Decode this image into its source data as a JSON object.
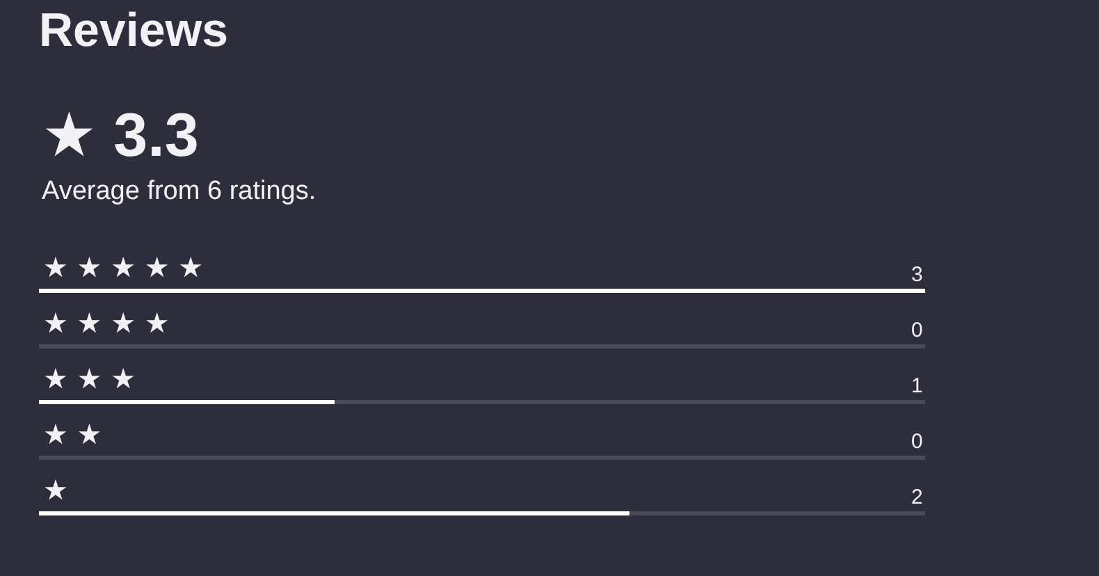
{
  "chart_data": {
    "type": "bar",
    "orientation": "horizontal",
    "title": "Reviews",
    "subtitle": "★ 3.3",
    "annotations": [
      "Average from 6 ratings."
    ],
    "categories": [
      "★ ★ ★ ★ ★",
      "★ ★ ★ ★",
      "★ ★ ★",
      "★ ★",
      "★"
    ],
    "values": [
      3,
      0,
      1,
      0,
      2
    ],
    "color": "#ffffff",
    "xlim": [
      0,
      3
    ],
    "data_labels": true,
    "tick_labels": "y",
    "grid": false,
    "legend": false
  }
}
